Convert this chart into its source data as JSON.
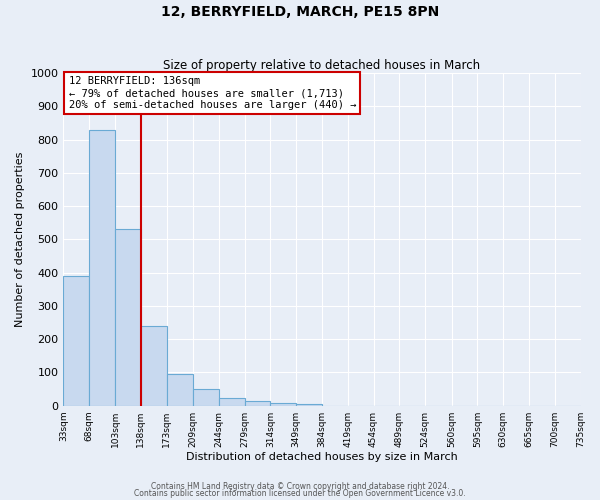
{
  "title": "12, BERRYFIELD, MARCH, PE15 8PN",
  "subtitle": "Size of property relative to detached houses in March",
  "xlabel": "Distribution of detached houses by size in March",
  "ylabel": "Number of detached properties",
  "bar_edges": [
    33,
    68,
    103,
    138,
    173,
    209,
    244,
    279,
    314,
    349,
    384,
    419,
    454,
    489,
    524,
    560,
    595,
    630,
    665,
    700,
    735
  ],
  "bar_heights": [
    390,
    830,
    530,
    240,
    95,
    50,
    22,
    15,
    8,
    5,
    0,
    0,
    0,
    0,
    0,
    0,
    0,
    0,
    0,
    0
  ],
  "bar_color": "#c8d9ef",
  "bar_edge_color": "#6aaad4",
  "vline_x": 138,
  "vline_color": "#cc0000",
  "annotation_title": "12 BERRYFIELD: 136sqm",
  "annotation_line1": "← 79% of detached houses are smaller (1,713)",
  "annotation_line2": "20% of semi-detached houses are larger (440) →",
  "annotation_box_color": "white",
  "annotation_box_edge": "#cc0000",
  "ylim": [
    0,
    1000
  ],
  "yticks": [
    0,
    100,
    200,
    300,
    400,
    500,
    600,
    700,
    800,
    900,
    1000
  ],
  "tick_labels": [
    "33sqm",
    "68sqm",
    "103sqm",
    "138sqm",
    "173sqm",
    "209sqm",
    "244sqm",
    "279sqm",
    "314sqm",
    "349sqm",
    "384sqm",
    "419sqm",
    "454sqm",
    "489sqm",
    "524sqm",
    "560sqm",
    "595sqm",
    "630sqm",
    "665sqm",
    "700sqm",
    "735sqm"
  ],
  "footer1": "Contains HM Land Registry data © Crown copyright and database right 2024.",
  "footer2": "Contains public sector information licensed under the Open Government Licence v3.0.",
  "bg_color": "#e8eef7",
  "plot_bg_color": "#e8eef7",
  "grid_color": "#ffffff",
  "figsize": [
    6.0,
    5.0
  ],
  "dpi": 100
}
